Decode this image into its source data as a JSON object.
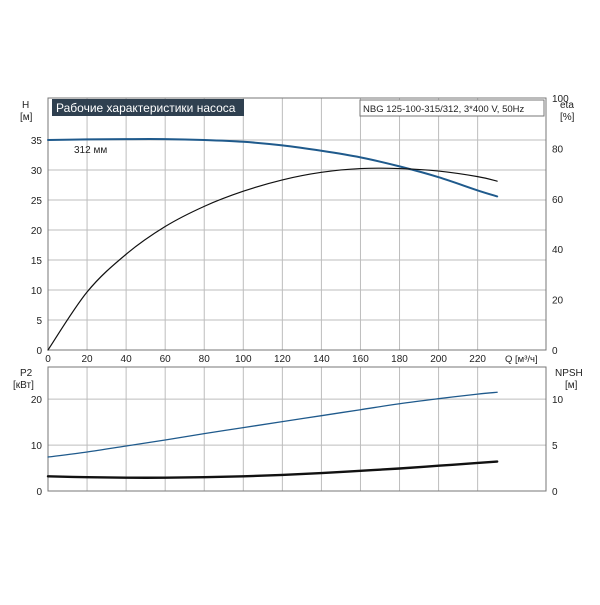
{
  "chart_data": {
    "type": "line",
    "title": "Рабочие характеристики насоса",
    "subtitle": "NBG 125-100-315/312, 3*400 V, 50Hz",
    "colors": {
      "title_bg": "#2f4050",
      "title_text": "#ffffff",
      "head_curve": "#1f5a8c",
      "eff_curve": "#111111",
      "power_curve": "#1f5a8c",
      "npsh_curve": "#111111",
      "grid": "#bdbdbd",
      "frame": "#777777"
    },
    "top": {
      "left_axis": {
        "name": "H",
        "unit": "[м]",
        "ticks": [
          "0",
          "5",
          "10",
          "15",
          "20",
          "25",
          "30",
          "35"
        ],
        "range": [
          0,
          42
        ]
      },
      "right_axis": {
        "name": "eta",
        "unit": "[%]",
        "ticks": [
          "0",
          "20",
          "40",
          "60",
          "80",
          "100"
        ],
        "range": [
          0,
          100
        ]
      },
      "series": [
        {
          "name": "312 мм",
          "axis": "left",
          "x": [
            0,
            20,
            40,
            60,
            80,
            100,
            120,
            140,
            160,
            180,
            200,
            220,
            230
          ],
          "y": [
            35.0,
            35.1,
            35.15,
            35.15,
            35.0,
            34.7,
            34.1,
            33.2,
            32.1,
            30.6,
            28.8,
            26.6,
            25.6
          ]
        },
        {
          "name": "",
          "axis": "right",
          "x": [
            0,
            20,
            40,
            60,
            80,
            100,
            120,
            140,
            160,
            180,
            200,
            220,
            230
          ],
          "y": [
            0,
            23,
            38,
            49,
            57,
            63,
            67.5,
            70.5,
            72,
            72,
            71,
            68.8,
            67
          ]
        }
      ]
    },
    "bottom": {
      "left_axis": {
        "name": "P2",
        "unit": "[кВт]",
        "ticks": [
          "0",
          "10",
          "20"
        ],
        "range": [
          0,
          27
        ]
      },
      "right_axis": {
        "name": "NPSH",
        "unit": "[м]",
        "ticks": [
          "0",
          "5",
          "10"
        ],
        "range": [
          0,
          13.5
        ]
      },
      "series": [
        {
          "name": "",
          "axis": "left",
          "x": [
            0,
            20,
            40,
            60,
            80,
            100,
            120,
            140,
            160,
            180,
            200,
            220,
            230
          ],
          "y": [
            7.4,
            8.5,
            9.8,
            11.1,
            12.5,
            13.8,
            15.1,
            16.4,
            17.7,
            19.0,
            20.1,
            21.1,
            21.5
          ]
        },
        {
          "name": "",
          "axis": "right",
          "x": [
            0,
            20,
            40,
            60,
            80,
            100,
            120,
            140,
            160,
            180,
            200,
            220,
            230
          ],
          "y": [
            1.6,
            1.5,
            1.45,
            1.45,
            1.5,
            1.6,
            1.75,
            1.95,
            2.2,
            2.45,
            2.75,
            3.05,
            3.2
          ]
        }
      ]
    },
    "x_axis": {
      "label": "Q [м³/ч]",
      "ticks": [
        "0",
        "20",
        "40",
        "60",
        "80",
        "100",
        "120",
        "140",
        "160",
        "180",
        "200",
        "220"
      ],
      "range": [
        0,
        255
      ]
    },
    "grid": true
  }
}
